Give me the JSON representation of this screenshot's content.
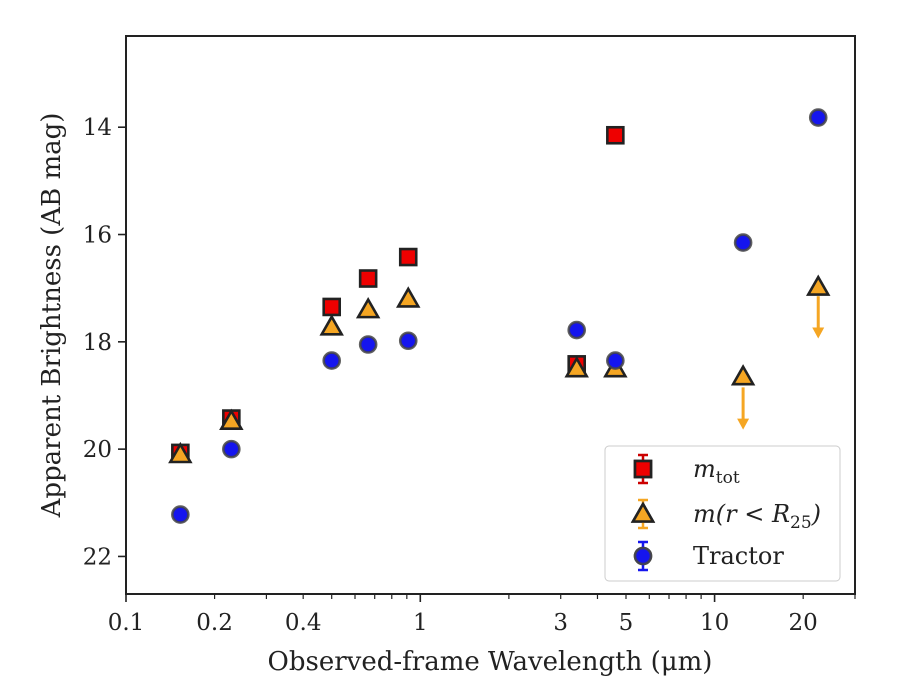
{
  "chart_data": {
    "type": "scatter",
    "xlabel": "Observed-frame Wavelength (μm)",
    "ylabel": "Apparent Brightness (AB mag)",
    "xscale": "log",
    "xlim": [
      0.1,
      30
    ],
    "ylim": [
      22.7,
      12.3
    ],
    "y_inverted": true,
    "x_ticks": [
      {
        "value": 0.1,
        "label": "0.1"
      },
      {
        "value": 0.2,
        "label": "0.2"
      },
      {
        "value": 0.4,
        "label": "0.4"
      },
      {
        "value": 1,
        "label": "1"
      },
      {
        "value": 3,
        "label": "3"
      },
      {
        "value": 5,
        "label": "5"
      },
      {
        "value": 10,
        "label": "10"
      },
      {
        "value": 20,
        "label": "20"
      }
    ],
    "y_ticks": [
      {
        "value": 14,
        "label": "14"
      },
      {
        "value": 16,
        "label": "16"
      },
      {
        "value": 18,
        "label": "18"
      },
      {
        "value": 20,
        "label": "20"
      },
      {
        "value": 22,
        "label": "22"
      }
    ],
    "grid": false,
    "legend_position": "bottom-right",
    "series": [
      {
        "name": "m_tot",
        "legend_main": "m",
        "legend_sub": "tot",
        "marker": "square",
        "color": "#ee0000",
        "errcolor": "#cc0000",
        "x": [
          0.153,
          0.228,
          0.5,
          0.665,
          0.91,
          3.4,
          4.6
        ],
        "y": [
          20.07,
          19.43,
          17.35,
          16.82,
          16.42,
          18.42,
          14.15
        ]
      },
      {
        "name": "m(r < R_25)",
        "legend_main": "m(r < R",
        "legend_sub": "25",
        "legend_end": ")",
        "marker": "triangle",
        "color": "#f5a623",
        "errcolor": "#f5a623",
        "x": [
          0.153,
          0.228,
          0.5,
          0.665,
          0.91,
          3.4,
          4.6,
          12.5,
          22.5
        ],
        "y": [
          20.1,
          19.48,
          17.72,
          17.4,
          17.2,
          18.5,
          18.5,
          18.65,
          16.98
        ],
        "upper_limit_arrows": [
          {
            "x": 12.5,
            "from": 18.7,
            "to": 19.6
          },
          {
            "x": 22.5,
            "from": 17.0,
            "to": 17.9
          }
        ]
      },
      {
        "name": "Tractor",
        "legend_main": "Tractor",
        "marker": "circle",
        "color": "#1515ee",
        "errcolor": "#1515ee",
        "x": [
          0.153,
          0.228,
          0.5,
          0.665,
          0.91,
          3.4,
          4.6,
          12.5,
          22.5
        ],
        "y": [
          21.22,
          20.0,
          18.35,
          18.05,
          17.98,
          17.78,
          18.35,
          16.15,
          13.82
        ]
      }
    ]
  }
}
